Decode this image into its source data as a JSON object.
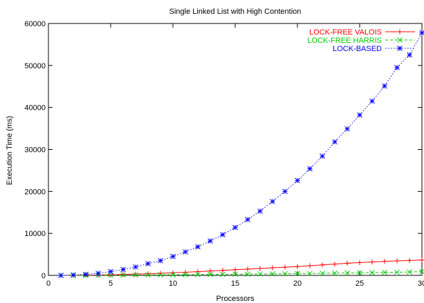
{
  "chart_data": {
    "type": "line",
    "title": "Single Linked List with High Contention",
    "xlabel": "Processors",
    "ylabel": "Execution Time (ms)",
    "xlim": [
      0,
      30
    ],
    "ylim": [
      0,
      60000
    ],
    "xticks": [
      0,
      5,
      10,
      15,
      20,
      25,
      30
    ],
    "yticks": [
      0,
      10000,
      20000,
      30000,
      40000,
      50000,
      60000
    ],
    "grid": false,
    "legend_position": "top-right",
    "x": [
      1,
      2,
      3,
      4,
      5,
      6,
      7,
      8,
      9,
      10,
      11,
      12,
      13,
      14,
      15,
      16,
      17,
      18,
      19,
      20,
      21,
      22,
      23,
      24,
      25,
      26,
      27,
      28,
      29,
      30
    ],
    "series": [
      {
        "name": "LOCK-FREE VALOIS",
        "color": "#ff0000",
        "marker": "plus",
        "dash": "solid",
        "values": [
          0,
          20,
          50,
          100,
          150,
          220,
          300,
          400,
          500,
          620,
          750,
          900,
          1050,
          1200,
          1350,
          1500,
          1650,
          1800,
          1950,
          2100,
          2300,
          2500,
          2700,
          2900,
          3050,
          3200,
          3350,
          3450,
          3550,
          3650
        ]
      },
      {
        "name": "LOCK-FREE HARRIS",
        "color": "#00cc00",
        "marker": "x",
        "dash": "dashed",
        "values": [
          0,
          10,
          20,
          30,
          50,
          70,
          90,
          110,
          130,
          150,
          170,
          200,
          220,
          250,
          280,
          310,
          340,
          370,
          400,
          430,
          460,
          500,
          540,
          580,
          620,
          660,
          700,
          750,
          800,
          900
        ]
      },
      {
        "name": "LOCK-BASED",
        "color": "#0000ff",
        "marker": "star",
        "dash": "dotted",
        "values": [
          0,
          100,
          250,
          500,
          900,
          1400,
          2000,
          2800,
          3500,
          4500,
          5600,
          6800,
          8200,
          9700,
          11400,
          13300,
          15300,
          17600,
          20000,
          22600,
          25400,
          28400,
          31800,
          34900,
          38200,
          41500,
          45100,
          49500,
          52500,
          57800
        ]
      }
    ]
  }
}
